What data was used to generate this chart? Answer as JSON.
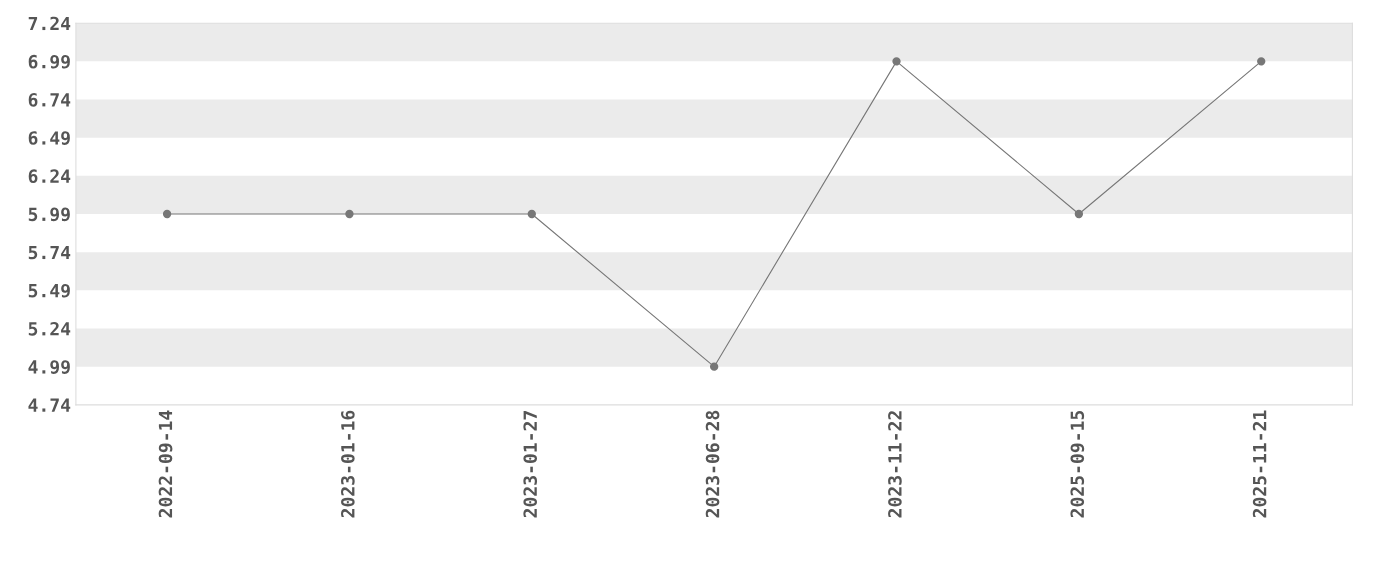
{
  "chart_data": {
    "type": "line",
    "categories": [
      "2022-09-14",
      "2023-01-16",
      "2023-01-27",
      "2023-06-28",
      "2023-11-22",
      "2025-09-15",
      "2025-11-21"
    ],
    "series": [
      {
        "color": "#777777",
        "values": [
          5.99,
          5.99,
          5.99,
          4.99,
          6.99,
          5.99,
          6.99
        ]
      }
    ],
    "ylim": [
      4.74,
      7.24
    ],
    "yticks": [
      4.74,
      4.99,
      5.24,
      5.49,
      5.74,
      5.99,
      6.24,
      6.49,
      6.74,
      6.99,
      7.24
    ],
    "bands": [
      {
        "axis": "y",
        "from": 6.99,
        "to": 7.24,
        "color": "#ebebeb"
      },
      {
        "axis": "y",
        "from": 6.49,
        "to": 6.74,
        "color": "#ebebeb"
      },
      {
        "axis": "y",
        "from": 5.99,
        "to": 6.24,
        "color": "#ebebeb"
      },
      {
        "axis": "y",
        "from": 5.49,
        "to": 5.74,
        "color": "#ebebeb"
      },
      {
        "axis": "y",
        "from": 4.99,
        "to": 5.24,
        "color": "#ebebeb"
      }
    ],
    "marker": "circle",
    "line_style": "solid",
    "grid": false,
    "legend": false
  }
}
